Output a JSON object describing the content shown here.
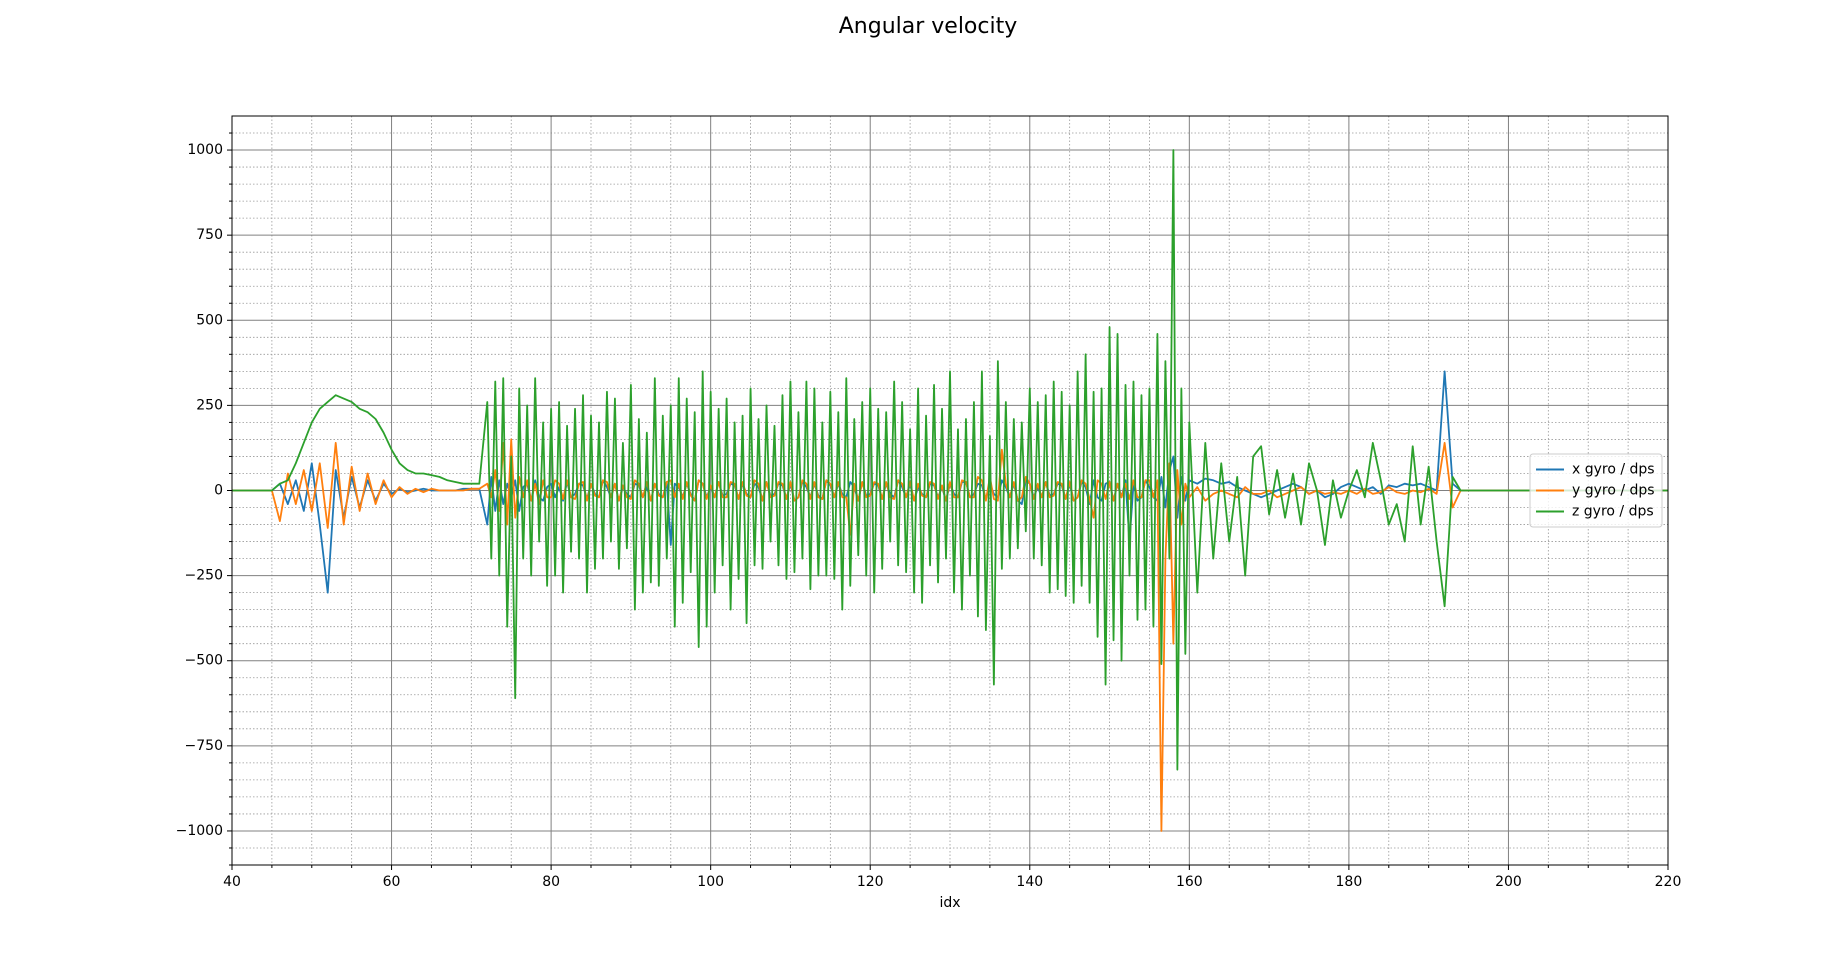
{
  "chart_data": {
    "type": "line",
    "title": "Angular velocity",
    "x_label": "idx",
    "xlim": [
      40,
      220
    ],
    "ylim": [
      -1100,
      1100
    ],
    "xticks": [
      40,
      60,
      80,
      100,
      120,
      140,
      160,
      180,
      200,
      220
    ],
    "yticks": [
      {
        "value": -1000,
        "label": "−1000"
      },
      {
        "value": -750,
        "label": "−750"
      },
      {
        "value": -500,
        "label": "−500"
      },
      {
        "value": -250,
        "label": "−250"
      },
      0,
      250,
      500,
      750,
      1000
    ],
    "xminorticks": [
      45,
      50,
      55,
      65,
      70,
      75,
      85,
      90,
      95,
      105,
      110,
      115,
      125,
      130,
      135,
      145,
      150,
      155,
      165,
      170,
      175,
      185,
      190,
      195,
      205,
      210,
      215
    ],
    "yminorticks": [
      -1100,
      -1050,
      -950,
      -900,
      -850,
      -800,
      -700,
      -650,
      -600,
      -550,
      -450,
      -400,
      -350,
      -300,
      -200,
      -150,
      -100,
      -50,
      50,
      100,
      150,
      200,
      300,
      350,
      400,
      450,
      550,
      600,
      650,
      700,
      800,
      850,
      900,
      950,
      1050
    ],
    "grid": true,
    "legend": "right",
    "x": [
      40,
      41,
      42,
      43,
      44,
      45,
      46,
      47,
      48,
      49,
      50,
      51,
      52,
      53,
      54,
      55,
      56,
      57,
      58,
      59,
      60,
      61,
      62,
      63,
      64,
      65,
      66,
      67,
      68,
      69,
      70,
      71,
      72,
      72.5,
      73,
      73.5,
      74,
      74.5,
      75,
      75.5,
      76,
      76.5,
      77,
      77.5,
      78,
      78.5,
      79,
      79.5,
      80,
      80.5,
      81,
      81.5,
      82,
      82.5,
      83,
      83.5,
      84,
      84.5,
      85,
      85.5,
      86,
      86.5,
      87,
      87.5,
      88,
      88.5,
      89,
      89.5,
      90,
      90.5,
      91,
      91.5,
      92,
      92.5,
      93,
      93.5,
      94,
      94.5,
      95,
      95.5,
      96,
      96.5,
      97,
      97.5,
      98,
      98.5,
      99,
      99.5,
      100,
      100.5,
      101,
      101.5,
      102,
      102.5,
      103,
      103.5,
      104,
      104.5,
      105,
      105.5,
      106,
      106.5,
      107,
      107.5,
      108,
      108.5,
      109,
      109.5,
      110,
      110.5,
      111,
      111.5,
      112,
      112.5,
      113,
      113.5,
      114,
      114.5,
      115,
      115.5,
      116,
      116.5,
      117,
      117.5,
      118,
      118.5,
      119,
      119.5,
      120,
      120.5,
      121,
      121.5,
      122,
      122.5,
      123,
      123.5,
      124,
      124.5,
      125,
      125.5,
      126,
      126.5,
      127,
      127.5,
      128,
      128.5,
      129,
      129.5,
      130,
      130.5,
      131,
      131.5,
      132,
      132.5,
      133,
      133.5,
      134,
      134.5,
      135,
      135.5,
      136,
      136.5,
      137,
      137.5,
      138,
      138.5,
      139,
      139.5,
      140,
      140.5,
      141,
      141.5,
      142,
      142.5,
      143,
      143.5,
      144,
      144.5,
      145,
      145.5,
      146,
      146.5,
      147,
      147.5,
      148,
      148.5,
      149,
      149.5,
      150,
      150.5,
      151,
      151.5,
      152,
      152.5,
      153,
      153.5,
      154,
      154.5,
      155,
      155.5,
      156,
      156.5,
      157,
      157.5,
      158,
      158.5,
      159,
      159.5,
      160,
      161,
      162,
      163,
      164,
      165,
      166,
      167,
      168,
      169,
      170,
      171,
      172,
      173,
      174,
      175,
      176,
      177,
      178,
      179,
      180,
      181,
      182,
      183,
      184,
      185,
      186,
      187,
      188,
      189,
      190,
      191,
      192,
      193,
      194,
      195,
      196,
      197,
      198,
      199,
      200,
      201,
      202,
      203,
      204,
      205,
      206,
      207,
      208,
      209,
      210,
      211,
      212,
      213,
      214,
      215,
      216,
      217,
      218,
      219,
      220
    ],
    "series": [
      {
        "name": "x gyro / dps",
        "color": "#1f77b4",
        "values": [
          0,
          0,
          0,
          0,
          0,
          0,
          20,
          -40,
          30,
          -60,
          80,
          -100,
          -300,
          60,
          -80,
          40,
          -50,
          30,
          -30,
          20,
          -10,
          5,
          -5,
          0,
          5,
          0,
          0,
          0,
          0,
          5,
          5,
          5,
          -100,
          40,
          -60,
          30,
          -40,
          20,
          -20,
          30,
          -60,
          10,
          20,
          -30,
          30,
          -20,
          -30,
          10,
          20,
          -20,
          10,
          -30,
          25,
          -20,
          -10,
          20,
          15,
          -25,
          20,
          -10,
          -20,
          30,
          10,
          -20,
          20,
          -30,
          10,
          -10,
          -20,
          20,
          15,
          -20,
          10,
          -30,
          20,
          -10,
          -20,
          25,
          -160,
          20,
          10,
          -20,
          20,
          -10,
          -30,
          30,
          20,
          -20,
          10,
          -20,
          25,
          -15,
          -10,
          20,
          15,
          -25,
          20,
          -10,
          -20,
          20,
          10,
          -30,
          25,
          -15,
          -10,
          20,
          15,
          -25,
          20,
          -30,
          -20,
          25,
          10,
          -20,
          20,
          -15,
          -25,
          30,
          15,
          -20,
          20,
          -10,
          -20,
          25,
          10,
          -30,
          25,
          -15,
          -10,
          20,
          15,
          -25,
          20,
          -10,
          -20,
          30,
          10,
          -20,
          20,
          -30,
          10,
          -10,
          -20,
          20,
          15,
          -20,
          10,
          -30,
          20,
          -10,
          -20,
          25,
          25,
          -20,
          -10,
          20,
          15,
          -25,
          20,
          -10,
          -20,
          30,
          10,
          -20,
          20,
          -30,
          -40,
          30,
          20,
          -20,
          10,
          -20,
          25,
          -15,
          -10,
          20,
          15,
          -25,
          20,
          -30,
          -20,
          25,
          10,
          -40,
          30,
          -20,
          -30,
          20,
          25,
          -30,
          20,
          -20,
          30,
          -150,
          20,
          -30,
          -20,
          30,
          10,
          -20,
          -30,
          40,
          -50,
          60,
          100,
          -80,
          40,
          -30,
          30,
          20,
          35,
          30,
          20,
          25,
          10,
          0,
          -10,
          -20,
          -10,
          0,
          10,
          20,
          10,
          -10,
          0,
          -20,
          -10,
          10,
          20,
          10,
          0,
          10,
          -10,
          15,
          10,
          20,
          15,
          20,
          10,
          0,
          350,
          20,
          0,
          0,
          0,
          0,
          0,
          0,
          0,
          0,
          0,
          0,
          0,
          0,
          0,
          0,
          0,
          0,
          0,
          0,
          0,
          0,
          0,
          0,
          0,
          0,
          0,
          0,
          0
        ]
      },
      {
        "name": "y gyro / dps",
        "color": "#ff7f0e",
        "values": [
          0,
          0,
          0,
          0,
          0,
          0,
          -90,
          50,
          -40,
          60,
          -60,
          80,
          -110,
          140,
          -100,
          70,
          -60,
          50,
          -40,
          30,
          -20,
          10,
          -10,
          5,
          -5,
          5,
          0,
          0,
          0,
          0,
          5,
          5,
          20,
          -20,
          60,
          -60,
          140,
          -100,
          150,
          -80,
          40,
          -20,
          30,
          -30,
          20,
          -40,
          30,
          -20,
          -20,
          30,
          20,
          -25,
          30,
          -20,
          -25,
          20,
          25,
          -30,
          20,
          -15,
          -20,
          30,
          25,
          -20,
          20,
          -30,
          15,
          -20,
          -25,
          30,
          20,
          -20,
          25,
          -30,
          20,
          -15,
          -20,
          25,
          30,
          -20,
          20,
          -25,
          25,
          -15,
          -30,
          30,
          20,
          -25,
          15,
          -20,
          25,
          -20,
          -20,
          25,
          20,
          -25,
          25,
          -15,
          -20,
          30,
          20,
          -30,
          25,
          -20,
          -15,
          25,
          20,
          -25,
          25,
          -30,
          -20,
          30,
          20,
          -25,
          25,
          -20,
          -25,
          30,
          20,
          -20,
          25,
          -20,
          -20,
          -130,
          20,
          -30,
          25,
          -20,
          -15,
          25,
          20,
          -25,
          25,
          -20,
          -25,
          30,
          20,
          -20,
          25,
          -30,
          20,
          -15,
          -20,
          25,
          20,
          -25,
          15,
          -30,
          25,
          -20,
          -20,
          30,
          25,
          -20,
          -20,
          40,
          30,
          -30,
          40,
          -25,
          -30,
          120,
          20,
          -20,
          25,
          -30,
          -20,
          40,
          20,
          -25,
          20,
          -20,
          25,
          -20,
          -15,
          25,
          20,
          -25,
          25,
          -30,
          -20,
          30,
          20,
          -25,
          -80,
          30,
          20,
          -25,
          25,
          -30,
          20,
          -20,
          20,
          -25,
          30,
          -20,
          -20,
          30,
          30,
          -20,
          30,
          -1000,
          -200,
          80,
          -450,
          60,
          -100,
          20,
          -20,
          10,
          -30,
          -10,
          0,
          -10,
          -20,
          10,
          -10,
          -10,
          0,
          -20,
          -10,
          0,
          10,
          -10,
          0,
          -10,
          -5,
          -10,
          0,
          -10,
          5,
          -10,
          -5,
          10,
          -5,
          -10,
          0,
          -5,
          5,
          -10,
          140,
          -50,
          0,
          0,
          0,
          0,
          0,
          0,
          0,
          0,
          0,
          0,
          0,
          0,
          0,
          0,
          0,
          0,
          0,
          0,
          0,
          0,
          0,
          0,
          0,
          0,
          0,
          0,
          0
        ]
      },
      {
        "name": "z gyro / dps",
        "color": "#2ca02c",
        "values": [
          0,
          0,
          0,
          0,
          0,
          0,
          20,
          30,
          80,
          140,
          200,
          240,
          260,
          280,
          270,
          260,
          240,
          230,
          210,
          170,
          120,
          80,
          60,
          50,
          50,
          45,
          40,
          30,
          25,
          20,
          20,
          20,
          260,
          -200,
          320,
          -250,
          330,
          -400,
          100,
          -610,
          300,
          -200,
          250,
          -250,
          330,
          -150,
          200,
          -280,
          240,
          -250,
          260,
          -300,
          190,
          -180,
          240,
          -200,
          280,
          -300,
          220,
          -230,
          200,
          -200,
          290,
          -150,
          270,
          -230,
          140,
          -170,
          310,
          -350,
          210,
          -300,
          170,
          -270,
          330,
          -280,
          220,
          -200,
          250,
          -400,
          330,
          -330,
          270,
          -240,
          230,
          -460,
          350,
          -400,
          290,
          -300,
          240,
          -220,
          270,
          -350,
          200,
          -260,
          220,
          -390,
          300,
          -220,
          210,
          -230,
          250,
          -150,
          190,
          -220,
          280,
          -260,
          320,
          -240,
          230,
          -200,
          320,
          -290,
          300,
          -250,
          200,
          -250,
          290,
          -260,
          230,
          -350,
          330,
          -280,
          210,
          -190,
          260,
          -250,
          300,
          -300,
          240,
          -230,
          230,
          -150,
          320,
          -220,
          260,
          -240,
          180,
          -300,
          300,
          -330,
          220,
          -220,
          310,
          -270,
          240,
          -200,
          350,
          -300,
          180,
          -350,
          210,
          -250,
          260,
          -370,
          350,
          -410,
          160,
          -570,
          380,
          -230,
          260,
          -200,
          210,
          -170,
          200,
          -120,
          300,
          -200,
          260,
          -220,
          280,
          -300,
          320,
          -290,
          290,
          -310,
          250,
          -330,
          350,
          -280,
          400,
          -330,
          290,
          -430,
          300,
          -570,
          480,
          -440,
          460,
          -500,
          310,
          -250,
          320,
          -380,
          280,
          -350,
          300,
          -400,
          460,
          -510,
          380,
          -200,
          1000,
          -820,
          300,
          -480,
          200,
          -300,
          140,
          -200,
          80,
          -150,
          40,
          -250,
          100,
          130,
          -70,
          60,
          -80,
          50,
          -100,
          80,
          0,
          -160,
          30,
          -80,
          0,
          60,
          -20,
          140,
          30,
          -100,
          -40,
          -150,
          130,
          -100,
          70,
          -150,
          -340,
          40,
          0,
          0,
          0,
          0,
          0,
          0,
          0,
          0,
          0,
          0,
          0,
          0,
          0,
          0,
          0,
          0,
          0,
          0,
          0,
          0,
          0,
          0,
          0,
          0,
          0,
          0,
          0
        ]
      }
    ]
  }
}
